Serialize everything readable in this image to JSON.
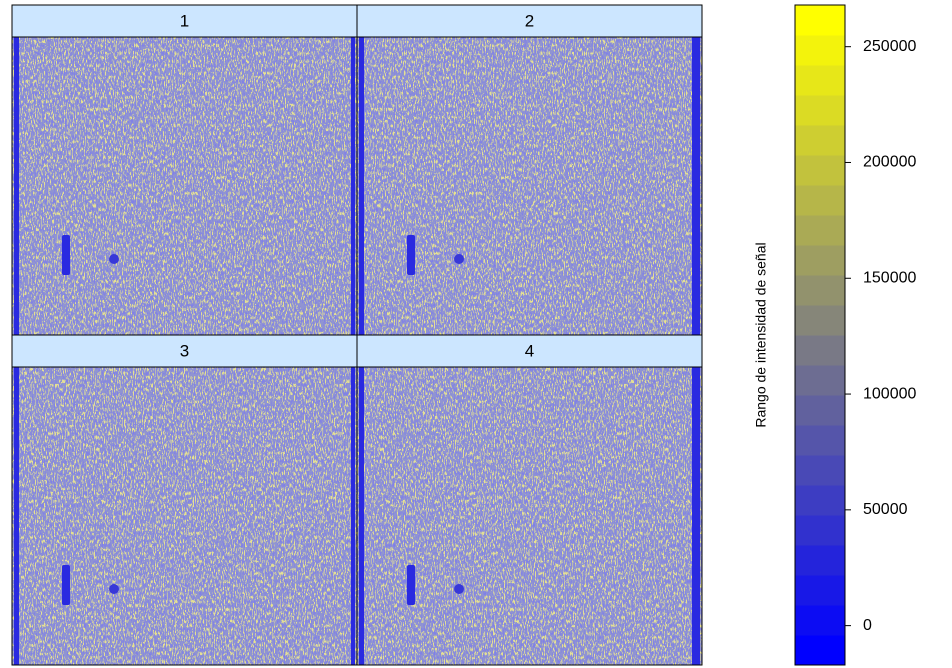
{
  "chart_data": {
    "type": "heatmap",
    "panels": [
      "1",
      "2",
      "3",
      "4"
    ],
    "colorbar": {
      "label": "Rango de intensidad de señal",
      "lim": [
        -17000,
        268000
      ],
      "ticks": [
        0,
        50000,
        100000,
        150000,
        200000,
        250000
      ],
      "colors": [
        "#0000ff",
        "#ffff00"
      ]
    }
  }
}
